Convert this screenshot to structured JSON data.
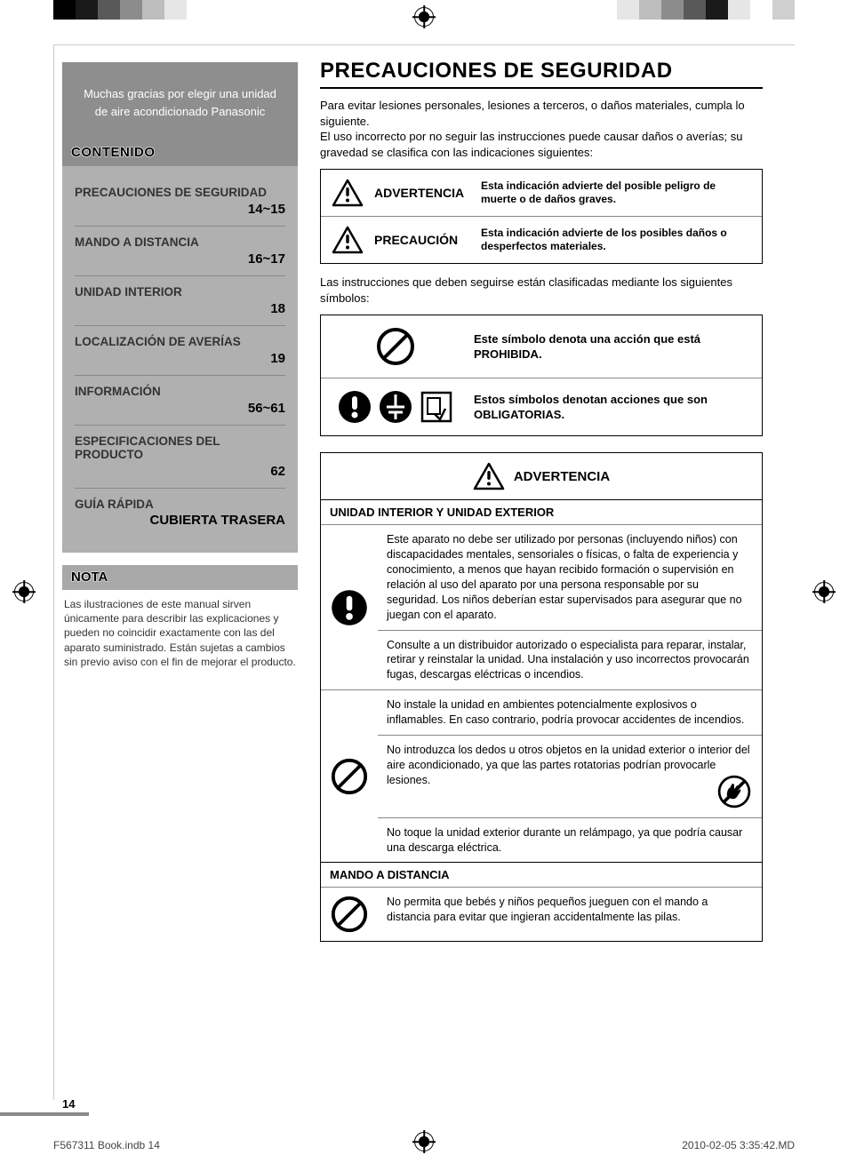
{
  "colors": {
    "top_blocks_left": [
      "#000000",
      "#1a1a1a",
      "#595959",
      "#8c8c8c",
      "#bdbdbd",
      "#e6e6e6"
    ],
    "top_blocks_right": [
      "#e6e6e6",
      "#bdbdbd",
      "#8c8c8c",
      "#595959",
      "#1a1a1a",
      "#e6e6e6",
      "#ffffff",
      "#cfcfcf"
    ]
  },
  "sidebar": {
    "thanks": "Muchas gracias por elegir una unidad de aire acondicionado Panasonic",
    "toc_header": "CONTENIDO",
    "items": [
      {
        "title": "PRECAUCIONES DE SEGURIDAD",
        "page": "14~15"
      },
      {
        "title": "MANDO A DISTANCIA",
        "page": "16~17"
      },
      {
        "title": "UNIDAD INTERIOR",
        "page": "18"
      },
      {
        "title": "LOCALIZACIÓN DE AVERÍAS",
        "page": "19"
      },
      {
        "title": "INFORMACIÓN",
        "page": "56~61"
      },
      {
        "title": "ESPECIFICACIONES DEL PRODUCTO",
        "page": "62"
      }
    ],
    "guia": "GUÍA RÁPIDA",
    "cubierta": "CUBIERTA TRASERA",
    "nota_header": "NOTA",
    "nota_body": "Las ilustraciones de este manual sirven únicamente para describir las explicaciones y pueden no coincidir exactamente con las del aparato suministrado. Están sujetas a cambios sin previo aviso con el fin de mejorar el producto."
  },
  "main": {
    "title": "PRECAUCIONES DE SEGURIDAD",
    "intro1": "Para evitar lesiones personales, lesiones a terceros, o daños materiales, cumpla lo siguiente.",
    "intro2": "El uso incorrecto por no seguir las instrucciones puede causar daños o averías; su gravedad se clasifica con las indicaciones siguientes:",
    "warn_rows": [
      {
        "label": "ADVERTENCIA",
        "desc": "Esta indicación advierte del posible peligro de muerte o de daños graves."
      },
      {
        "label": "PRECAUCIÓN",
        "desc": "Esta indicación advierte de los posibles daños o desperfectos materiales."
      }
    ],
    "sub_intro": "Las instrucciones que deben seguirse están clasificadas mediante los siguientes símbolos:",
    "sym_rows": [
      {
        "desc": "Este símbolo denota una acción que está PROHIBIDA."
      },
      {
        "desc": "Estos símbolos denotan acciones que son OBLIGATORIAS."
      }
    ],
    "adv_label": "ADVERTENCIA",
    "section1_head": "UNIDAD INTERIOR Y UNIDAD EXTERIOR",
    "section1_rows": [
      "Este aparato no debe ser utilizado por personas (incluyendo niños) con discapacidades mentales, sensoriales o físicas, o falta de experiencia y conocimiento, a menos que hayan recibido formación o supervisión en relación al uso del aparato por una persona responsable por su seguridad. Los niños deberían estar supervisados para asegurar que no juegan con el aparato.",
      "Consulte a un distribuidor autorizado o especialista para reparar, instalar, retirar y reinstalar la unidad. Una instalación y uso incorrectos provocarán fugas, descargas eléctricas o incendios.",
      "No instale la unidad en ambientes potencialmente explosivos o inflamables. En caso contrario, podría provocar accidentes de incendios.",
      "No introduzca los dedos u otros objetos en la unidad exterior o interior del aire acondicionado, ya que las partes rotatorias podrían provocarle lesiones.",
      "No toque la unidad exterior durante un relámpago, ya que podría causar una descarga eléctrica."
    ],
    "section2_head": "MANDO A DISTANCIA",
    "section2_rows": [
      "No permita que bebés y niños pequeños jueguen con el mando a distancia para evitar que ingieran accidentalmente las pilas."
    ]
  },
  "footer": {
    "page_num": "14",
    "book": "F567311 Book.indb   14",
    "timestamp": "2010-02-05   3:35:42.MD"
  }
}
